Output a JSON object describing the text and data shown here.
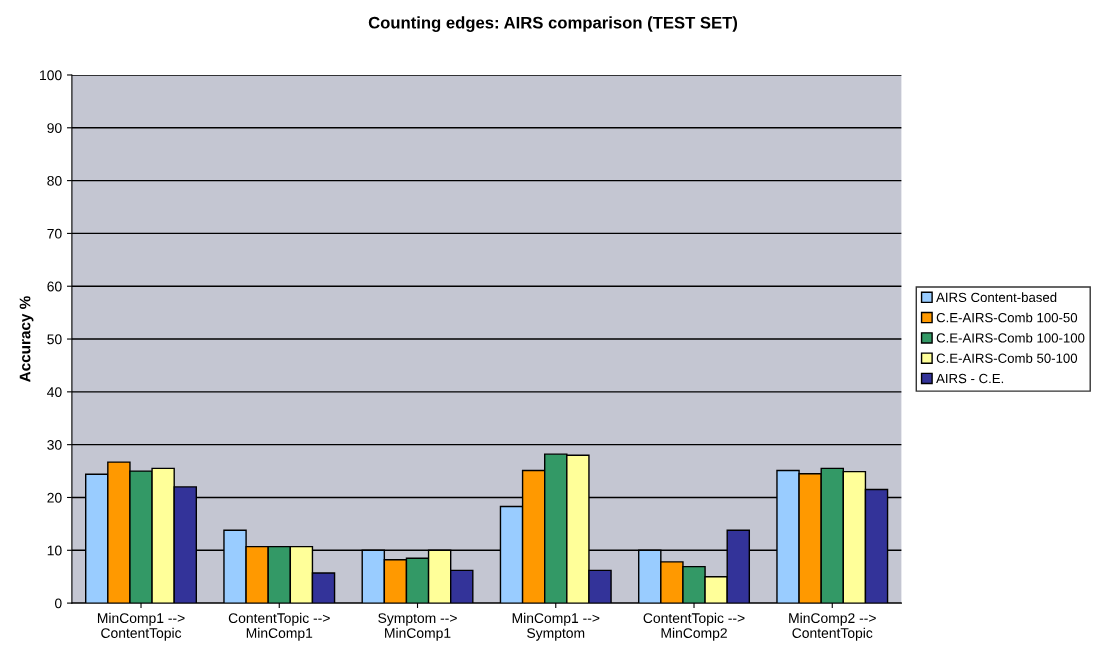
{
  "chart_data": {
    "type": "bar",
    "title": "Counting edges: AIRS comparison (TEST SET)",
    "ylabel": "Accuracy %",
    "categories": [
      "MinComp1 -->\nContentTopic",
      "ContentTopic -->\nMinComp1",
      "Symptom -->\nMinComp1",
      "MinComp1 -->\nSymptom",
      "ContentTopic -->\nMinComp2",
      "MinComp2 -->\nContentTopic"
    ],
    "series": [
      {
        "name": "AIRS Content-based",
        "color": "#99ccff",
        "values": [
          24.4,
          13.8,
          10,
          18.3,
          10,
          25.1
        ]
      },
      {
        "name": "C.E-AIRS-Comb 100-50",
        "color": "#ff9900",
        "values": [
          26.7,
          10.7,
          8.2,
          25.1,
          7.8,
          24.5
        ]
      },
      {
        "name": "C.E-AIRS-Comb 100-100",
        "color": "#339966",
        "values": [
          25,
          10.7,
          8.5,
          28.2,
          6.9,
          25.5
        ]
      },
      {
        "name": "C.E-AIRS-Comb 50-100",
        "color": "#ffff99",
        "values": [
          25.5,
          10.7,
          10,
          28,
          5,
          24.9
        ]
      },
      {
        "name": "AIRS - C.E.",
        "color": "#333399",
        "values": [
          22,
          5.7,
          6.2,
          6.2,
          13.8,
          21.5
        ]
      }
    ],
    "ylim": [
      0,
      100
    ],
    "yticks": [
      0,
      10,
      20,
      30,
      40,
      50,
      60,
      70,
      80,
      90,
      100
    ],
    "grid": "y",
    "legend": "right"
  }
}
